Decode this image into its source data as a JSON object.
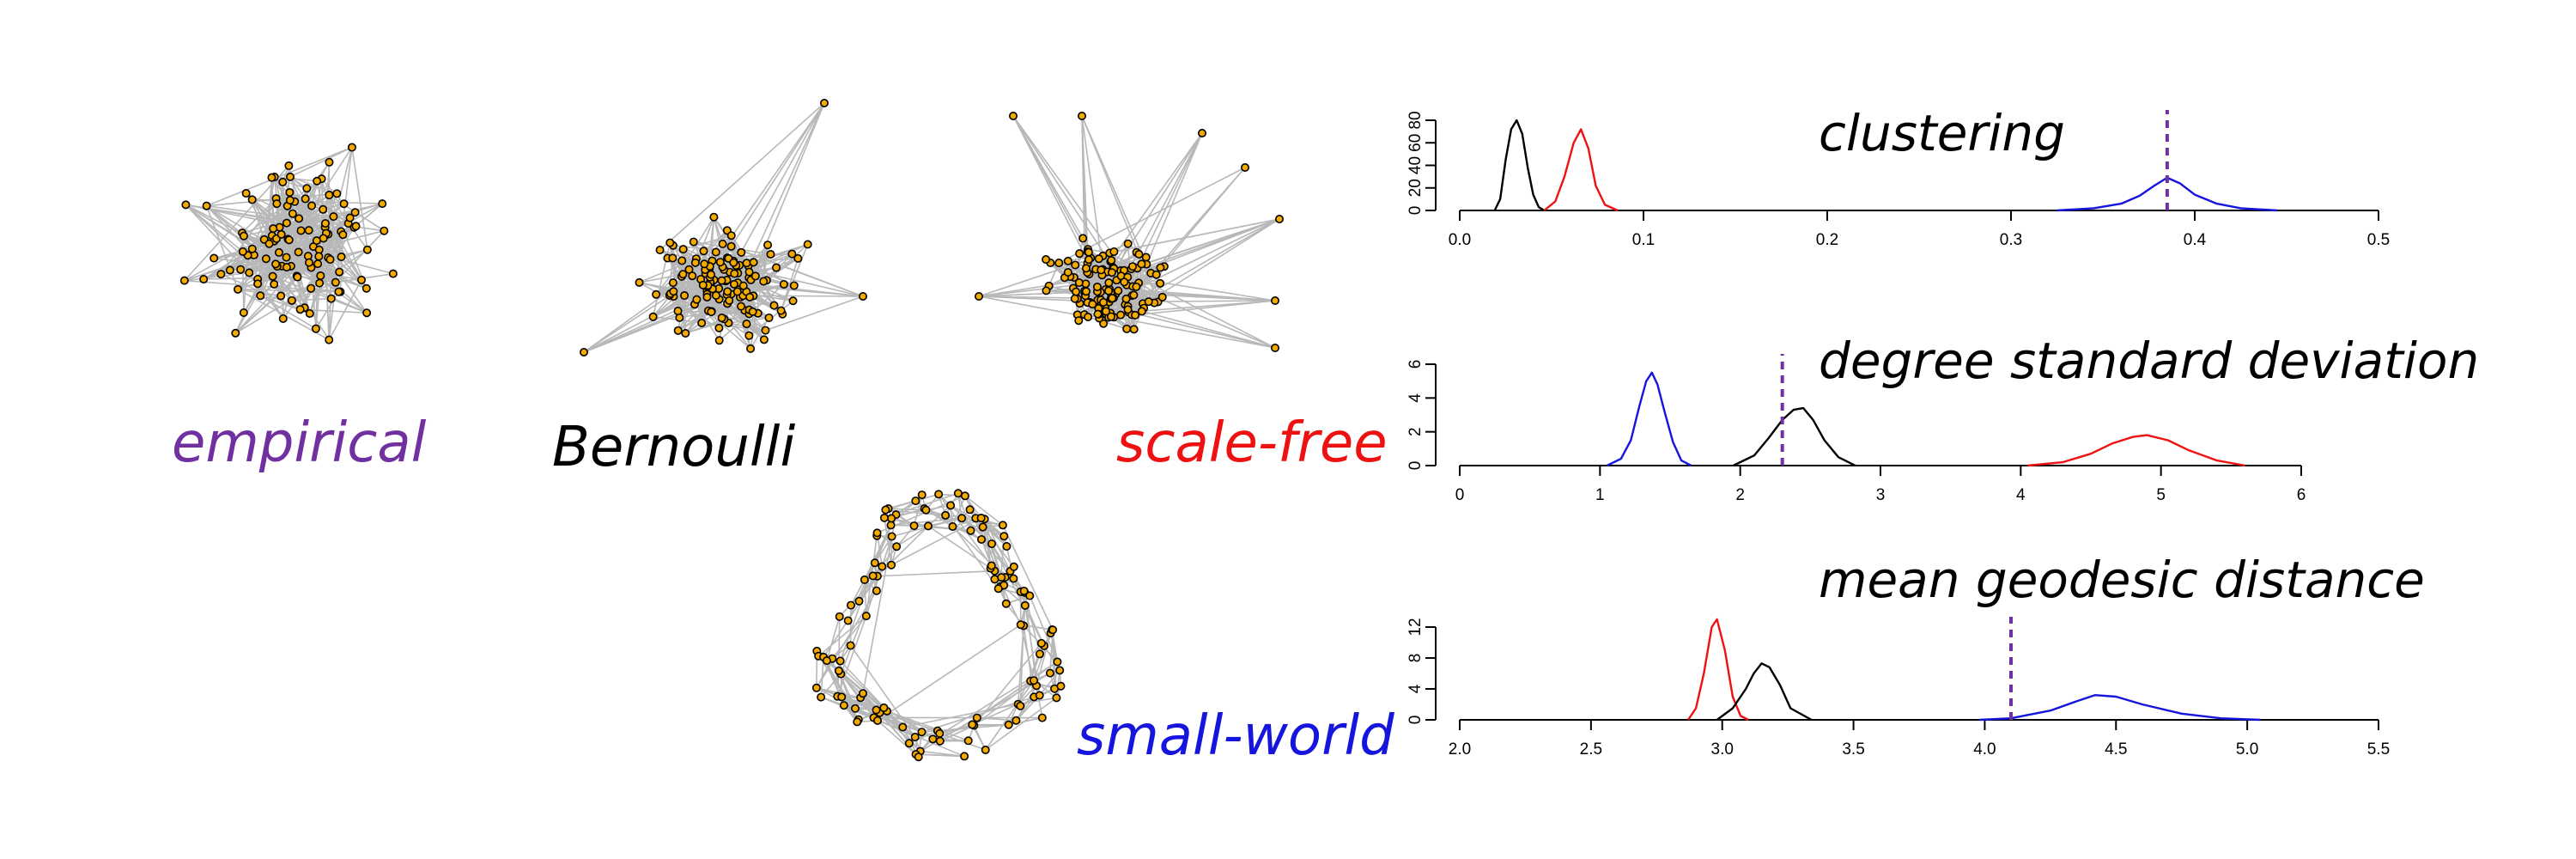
{
  "networks": [
    {
      "label": "empirical",
      "color": "#7030a0",
      "kind": "cluster"
    },
    {
      "label": "Bernoulli",
      "color": "#000000",
      "kind": "ball"
    },
    {
      "label": "scale-free",
      "color": "#ee1111",
      "kind": "hub"
    },
    {
      "label": "small-world",
      "color": "#1515dd",
      "kind": "ring"
    }
  ],
  "node_fill": "#f2a900",
  "edge_color": "#b8b8b8",
  "chart_data": [
    {
      "type": "line",
      "title": "clustering",
      "xlim": [
        0.0,
        0.5
      ],
      "xticks": [
        "0.0",
        "0.1",
        "0.2",
        "0.3",
        "0.4",
        "0.5"
      ],
      "ylim": [
        0,
        80
      ],
      "yticks": [
        "0",
        "20",
        "40",
        "60",
        "80"
      ],
      "observed": 0.385,
      "observed_color": "#7030a0",
      "series": [
        {
          "color": "#000000",
          "x": [
            0.019,
            0.022,
            0.025,
            0.028,
            0.031,
            0.034,
            0.037,
            0.04,
            0.043,
            0.046
          ],
          "y": [
            0,
            10,
            45,
            72,
            80,
            68,
            38,
            14,
            3,
            0
          ]
        },
        {
          "color": "#ee1111",
          "x": [
            0.046,
            0.052,
            0.057,
            0.062,
            0.066,
            0.07,
            0.074,
            0.079,
            0.086
          ],
          "y": [
            0,
            8,
            30,
            60,
            72,
            55,
            22,
            5,
            0
          ]
        },
        {
          "color": "#1515dd",
          "x": [
            0.325,
            0.345,
            0.36,
            0.37,
            0.378,
            0.385,
            0.392,
            0.4,
            0.412,
            0.425,
            0.445
          ],
          "y": [
            0,
            2,
            6,
            13,
            22,
            29,
            24,
            14,
            6,
            2,
            0
          ]
        }
      ]
    },
    {
      "type": "line",
      "title": "degree standard deviation",
      "xlim": [
        0,
        6
      ],
      "xticks": [
        "0",
        "1",
        "2",
        "3",
        "4",
        "5",
        "6"
      ],
      "ylim": [
        0,
        6
      ],
      "yticks": [
        "0",
        "2",
        "4",
        "6"
      ],
      "observed": 2.3,
      "observed_color": "#7030a0",
      "series": [
        {
          "color": "#1515dd",
          "x": [
            1.05,
            1.15,
            1.22,
            1.28,
            1.33,
            1.37,
            1.41,
            1.46,
            1.52,
            1.58,
            1.65
          ],
          "y": [
            0,
            0.4,
            1.5,
            3.5,
            5.0,
            5.5,
            4.8,
            3.2,
            1.4,
            0.3,
            0
          ]
        },
        {
          "color": "#000000",
          "x": [
            1.95,
            2.1,
            2.2,
            2.3,
            2.38,
            2.45,
            2.52,
            2.6,
            2.7,
            2.82
          ],
          "y": [
            0,
            0.6,
            1.6,
            2.7,
            3.3,
            3.4,
            2.7,
            1.5,
            0.5,
            0
          ]
        },
        {
          "color": "#ee1111",
          "x": [
            4.05,
            4.3,
            4.5,
            4.65,
            4.8,
            4.9,
            5.05,
            5.2,
            5.4,
            5.6
          ],
          "y": [
            0,
            0.2,
            0.7,
            1.3,
            1.7,
            1.8,
            1.5,
            0.9,
            0.3,
            0
          ]
        }
      ]
    },
    {
      "type": "line",
      "title": "mean geodesic distance",
      "xlim": [
        2.0,
        5.5
      ],
      "xticks": [
        "2.0",
        "2.5",
        "3.0",
        "3.5",
        "4.0",
        "4.5",
        "5.0",
        "5.5"
      ],
      "ylim": [
        0,
        12
      ],
      "yticks": [
        "0",
        "4",
        "8",
        "12"
      ],
      "observed": 4.1,
      "observed_color": "#7030a0",
      "series": [
        {
          "color": "#ee1111",
          "x": [
            2.87,
            2.9,
            2.93,
            2.96,
            2.98,
            3.01,
            3.04,
            3.07,
            3.1
          ],
          "y": [
            0,
            1.5,
            6,
            12,
            13,
            9,
            3,
            0.5,
            0
          ]
        },
        {
          "color": "#000000",
          "x": [
            2.98,
            3.04,
            3.09,
            3.12,
            3.15,
            3.18,
            3.22,
            3.26,
            3.34
          ],
          "y": [
            0,
            1.5,
            4,
            6,
            7.3,
            6.8,
            4.5,
            1.5,
            0
          ]
        },
        {
          "color": "#1515dd",
          "x": [
            3.98,
            4.1,
            4.25,
            4.35,
            4.42,
            4.5,
            4.6,
            4.75,
            4.9,
            5.05
          ],
          "y": [
            0,
            0.2,
            1.2,
            2.4,
            3.2,
            3.0,
            2.0,
            0.8,
            0.2,
            0
          ]
        }
      ]
    }
  ]
}
